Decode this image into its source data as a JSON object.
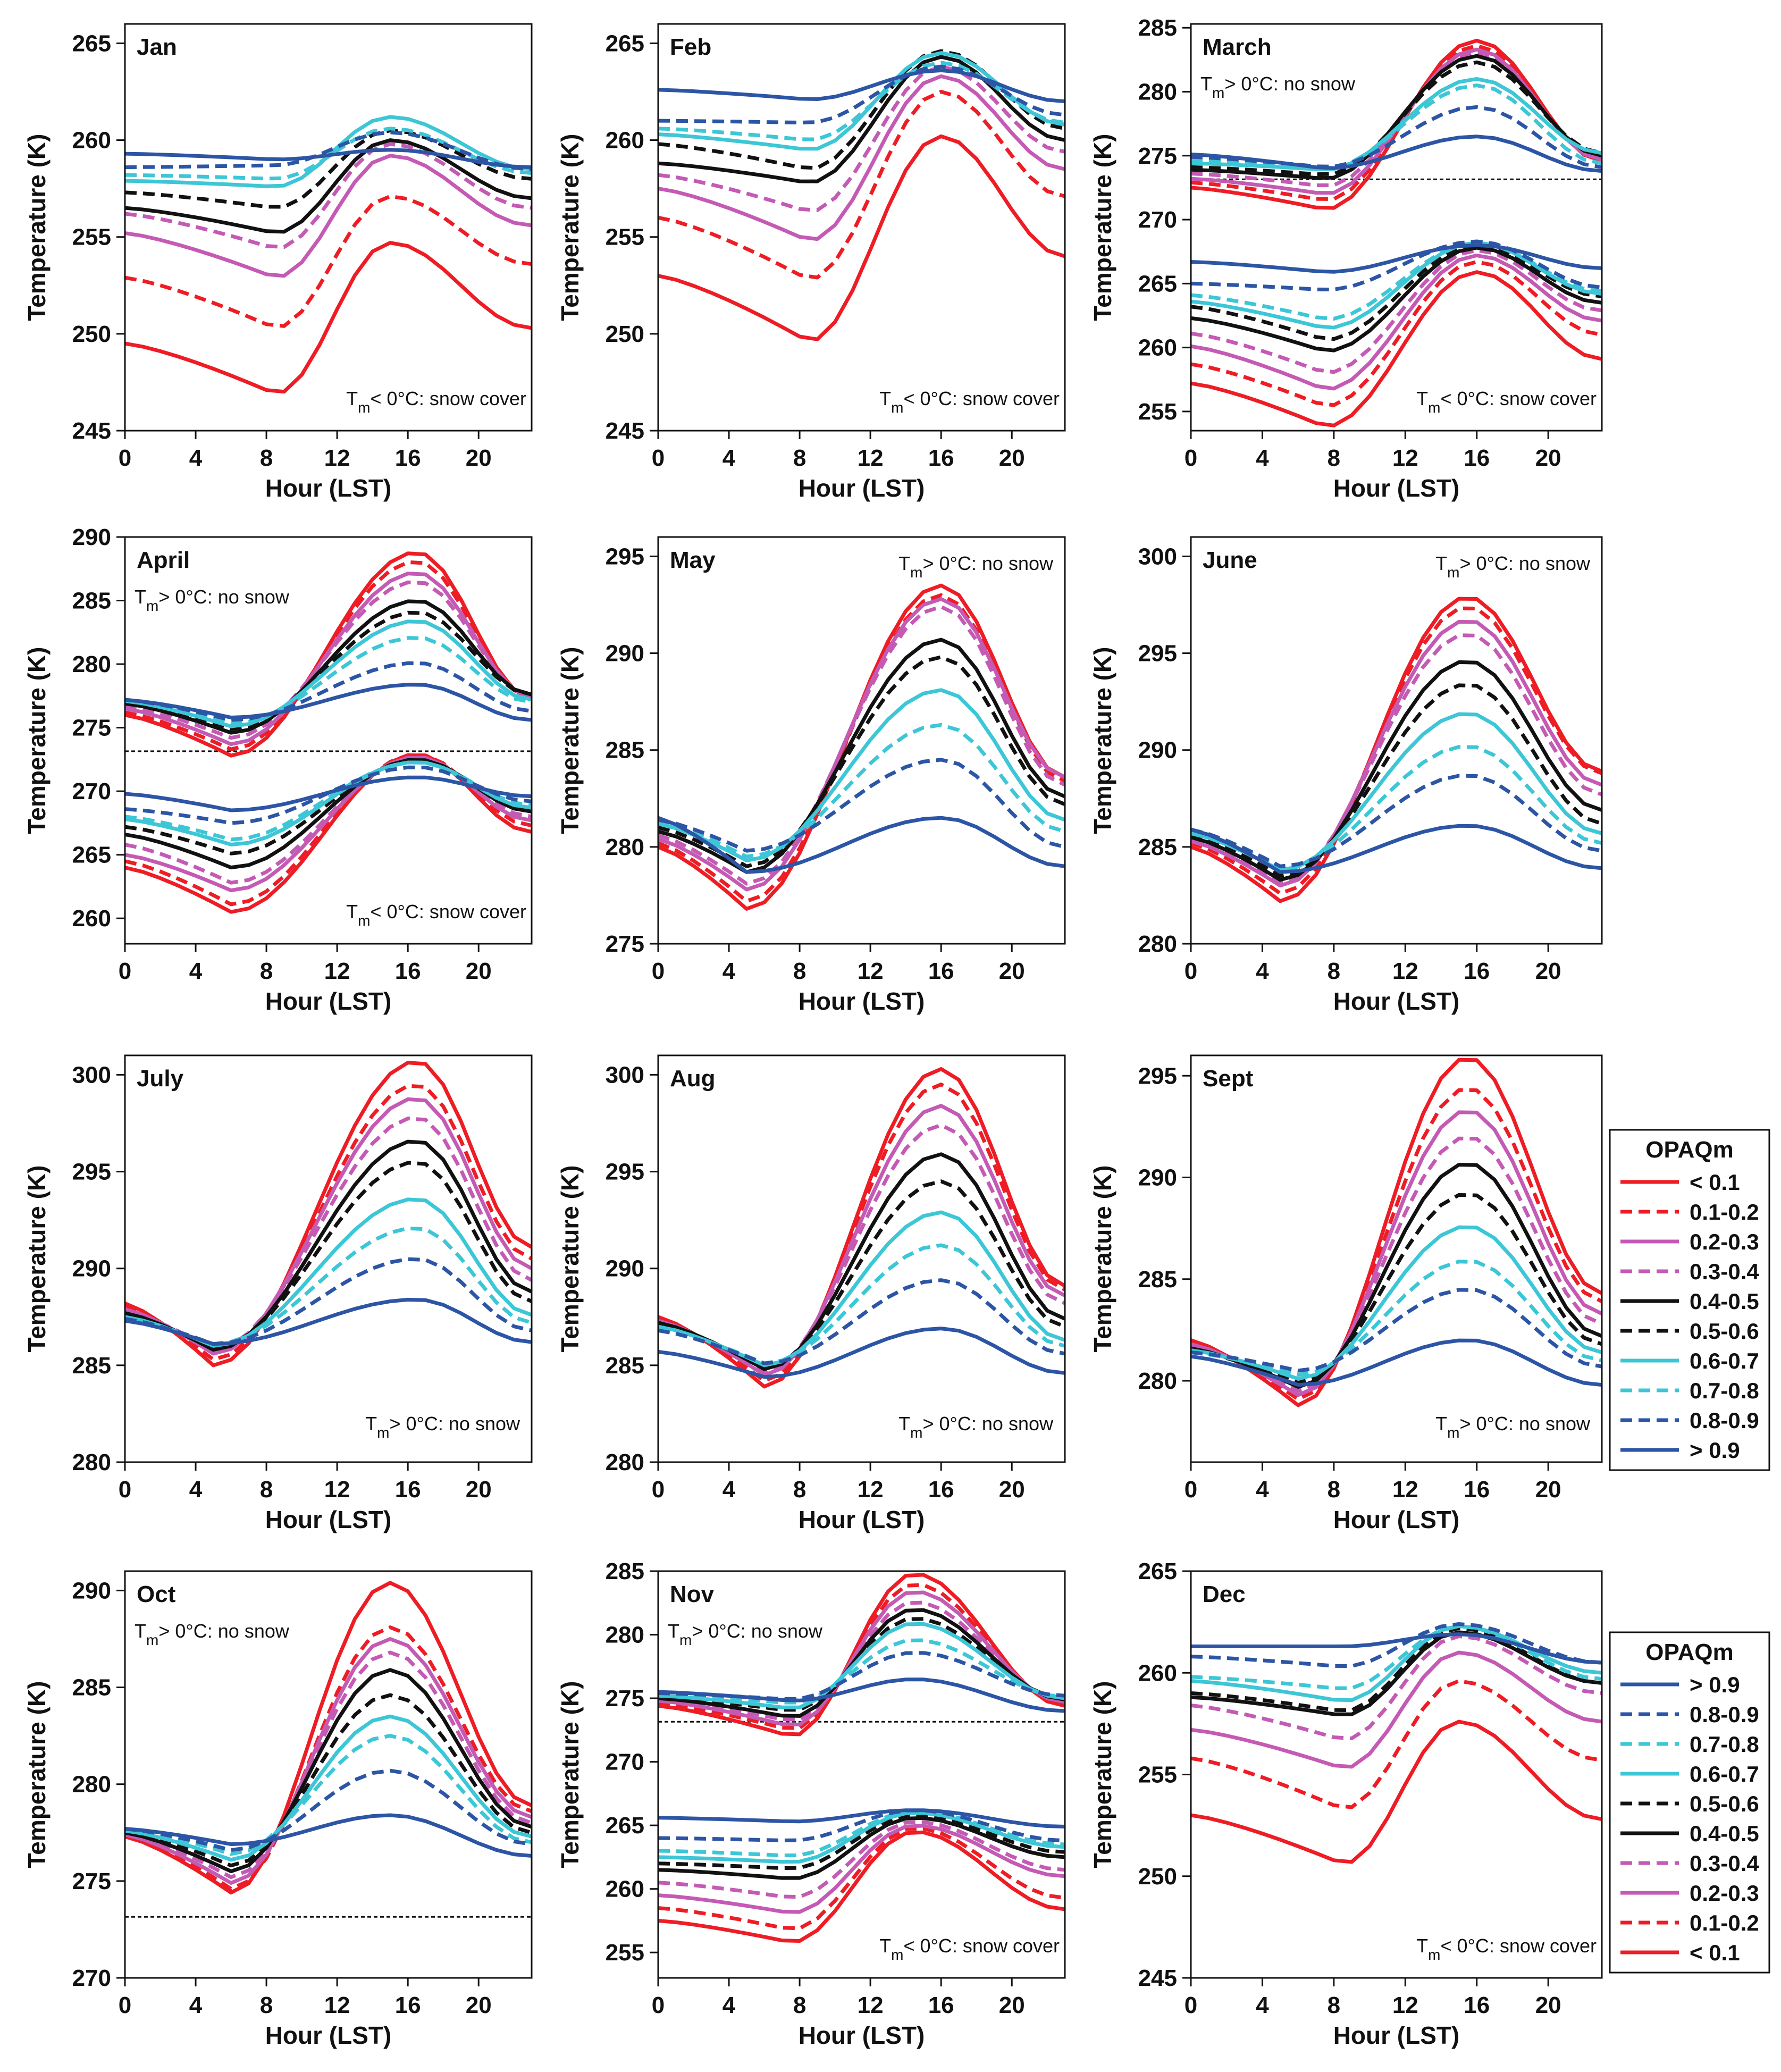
{
  "chart_data": {
    "type": "line",
    "panels": [
      {
        "title": "Jan",
        "ylim": [
          245,
          266
        ],
        "yticks": [
          245,
          250,
          255,
          260,
          265
        ],
        "snow": {
          "temp": "252",
          "lab": "T_m< 0°C: snow cover"
        }
      },
      {
        "title": "Feb",
        "ylim": [
          245,
          266
        ],
        "yticks": [
          245,
          250,
          255,
          260,
          265
        ],
        "snow": {
          "temp": "255",
          "lab": "T_m< 0°C: snow cover"
        }
      },
      {
        "title": "March",
        "ylim": [
          253.5,
          285.3
        ],
        "yticks": [
          255,
          260,
          265,
          270,
          275,
          280,
          285
        ],
        "nosnow": {
          "temp": "277",
          "lab": "T_m> 0°C: no snow"
        },
        "snow": {
          "temp": "261",
          "lab": "T_m< 0°C: snow cover"
        },
        "freeze": 273.15
      },
      {
        "title": "April",
        "ylim": [
          258,
          290
        ],
        "yticks": [
          260,
          265,
          270,
          275,
          280,
          285,
          290
        ],
        "nosnow": {
          "temp": "279",
          "lab": "T_m> 0°C: no snow"
        },
        "snow": {
          "temp": "266",
          "lab": "T_m< 0°C: snow cover"
        },
        "freeze": 273.15
      },
      {
        "title": "May",
        "ylim": [
          275,
          296
        ],
        "yticks": [
          275,
          280,
          285,
          290,
          295
        ],
        "nosnow": {
          "temp": "285",
          "lab": "T_m> 0°C: no snow"
        }
      },
      {
        "title": "June",
        "ylim": [
          280,
          301
        ],
        "yticks": [
          280,
          285,
          290,
          295,
          300
        ],
        "nosnow": {
          "temp": "289",
          "lab": "T_m> 0°C: no snow"
        }
      },
      {
        "title": "July",
        "ylim": [
          280,
          301
        ],
        "yticks": [
          280,
          285,
          290,
          295,
          300
        ],
        "nosnow": {
          "temp": "291",
          "lab": "T_m> 0°C: no snow"
        }
      },
      {
        "title": "Aug",
        "ylim": [
          280,
          301
        ],
        "yticks": [
          280,
          285,
          290,
          295,
          300
        ],
        "nosnow": {
          "temp": "290",
          "lab": "T_m> 0°C: no snow"
        }
      },
      {
        "title": "Sept",
        "ylim": [
          276,
          296
        ],
        "yticks": [
          280,
          285,
          290,
          295
        ],
        "nosnow": {
          "temp": "286",
          "lab": "T_m> 0°C: no snow"
        }
      },
      {
        "title": "Oct",
        "ylim": [
          270,
          291
        ],
        "yticks": [
          270,
          275,
          280,
          285,
          290
        ],
        "nosnow": {
          "temp": "281",
          "lab": "T_m> 0°C: no snow"
        },
        "freeze": 273.15
      },
      {
        "title": "Nov",
        "ylim": [
          253,
          285
        ],
        "yticks": [
          255,
          260,
          265,
          270,
          275,
          280,
          285
        ],
        "nosnow": {
          "temp": "276",
          "lab": "T_m> 0°C: no snow"
        },
        "snow": {
          "temp": "260",
          "lab": "T_m< 0°C: snow cover"
        },
        "freeze": 273.15
      },
      {
        "title": "Dec",
        "ylim": [
          245,
          265
        ],
        "yticks": [
          245,
          250,
          255,
          260,
          265
        ],
        "snow": {
          "temp": "253",
          "lab": "T_m< 0°C: snow cover"
        }
      }
    ],
    "xlabel": "Hour (LST)",
    "ylabel": "Temperature (K)",
    "xticks": [
      0,
      4,
      8,
      12,
      16,
      20
    ],
    "xlim": [
      0,
      23
    ],
    "x_hours": [
      0,
      1,
      2,
      3,
      4,
      5,
      6,
      7,
      8,
      9,
      10,
      11,
      12,
      13,
      14,
      15,
      16,
      17,
      18,
      19,
      20,
      21,
      22,
      23
    ],
    "legend_title": "OPAQm",
    "legend_items": [
      "< 0.1",
      "0.1-0.2",
      "0.2-0.3",
      "0.3-0.4",
      "0.4-0.5",
      "0.5-0.6",
      "0.6-0.7",
      "0.7-0.8",
      "0.8-0.9",
      "> 0.9"
    ],
    "legend_items_reversed": [
      "> 0.9",
      "0.8-0.9",
      "0.7-0.8",
      "0.6-0.7",
      "0.5-0.6",
      "0.4-0.5",
      "0.3-0.4",
      "0.2-0.3",
      "0.1-0.2",
      "< 0.1"
    ],
    "series_styles": [
      {
        "color": "#ee1c24",
        "dash": false
      },
      {
        "color": "#ee1c24",
        "dash": true
      },
      {
        "color": "#c45ab4",
        "dash": false
      },
      {
        "color": "#c45ab4",
        "dash": true
      },
      {
        "color": "#111111",
        "dash": false
      },
      {
        "color": "#111111",
        "dash": true
      },
      {
        "color": "#3cc6d6",
        "dash": false
      },
      {
        "color": "#3cc6d6",
        "dash": true
      },
      {
        "color": "#2d55a5",
        "dash": true
      },
      {
        "color": "#2d55a5",
        "dash": false
      }
    ],
    "curve_groups": {
      "Jan": [
        {
          "peak": 15,
          "base": [
            249.5,
            252.9,
            255.2,
            256.2,
            256.5,
            257.3,
            257.9,
            258.2,
            258.6,
            259.3
          ],
          "min": [
            246.9,
            250.3,
            252.9,
            254.4,
            255.2,
            256.5,
            257.6,
            258.0,
            258.7,
            259.0
          ],
          "max": [
            254.7,
            257.1,
            259.2,
            259.8,
            260.0,
            260.5,
            261.2,
            260.6,
            260.4,
            259.5
          ],
          "end": [
            250.3,
            253.6,
            255.6,
            256.5,
            257.0,
            258.0,
            258.5,
            258.3,
            258.5,
            258.6
          ]
        }
      ],
      "Feb": [
        {
          "peak": 16,
          "base": [
            253.0,
            256.0,
            257.5,
            258.2,
            258.8,
            259.8,
            260.3,
            260.6,
            261.0,
            262.6
          ],
          "min": [
            249.6,
            252.8,
            254.8,
            256.3,
            257.8,
            258.5,
            259.5,
            260.0,
            260.9,
            262.1
          ],
          "max": [
            260.2,
            262.5,
            263.3,
            263.8,
            264.3,
            264.6,
            264.5,
            264.0,
            263.8,
            263.6
          ],
          "end": [
            254.0,
            257.1,
            258.5,
            259.4,
            260.0,
            260.6,
            260.8,
            260.9,
            261.3,
            262.0
          ]
        }
      ],
      "March": [
        {
          "peak": 16,
          "base": [
            272.5,
            272.9,
            273.2,
            273.6,
            273.9,
            274.1,
            274.4,
            274.6,
            274.9,
            275.1
          ],
          "min": [
            270.8,
            271.5,
            272.0,
            272.6,
            273.2,
            273.5,
            273.9,
            274.0,
            274.1,
            274.0
          ],
          "max": [
            284.0,
            283.6,
            283.3,
            283.0,
            282.8,
            282.3,
            281.0,
            280.5,
            278.8,
            276.5
          ],
          "end": [
            274.6,
            274.7,
            274.7,
            274.9,
            275.0,
            275.2,
            275.2,
            274.4,
            274.1,
            273.8
          ]
        },
        {
          "peak": 16,
          "base": [
            257.2,
            258.7,
            260.1,
            261.1,
            262.3,
            263.2,
            263.6,
            264.1,
            265.0,
            266.7
          ],
          "min": [
            253.8,
            255.4,
            256.7,
            258.0,
            259.7,
            260.6,
            261.5,
            262.2,
            264.5,
            265.9
          ],
          "max": [
            265.9,
            266.7,
            267.2,
            267.6,
            267.8,
            268.0,
            268.2,
            268.2,
            268.3,
            268.0
          ],
          "end": [
            259.1,
            261.0,
            262.1,
            262.9,
            263.5,
            264.0,
            264.2,
            264.4,
            264.7,
            266.2
          ]
        }
      ],
      "April": [
        {
          "peak": 16.5,
          "base": [
            276.0,
            276.2,
            276.5,
            276.7,
            276.9,
            277.0,
            277.1,
            277.2,
            277.2,
            277.2
          ],
          "min": [
            272.8,
            273.3,
            273.7,
            274.2,
            274.6,
            274.9,
            275.1,
            275.3,
            275.6,
            275.8
          ],
          "max": [
            288.8,
            288.1,
            287.2,
            286.5,
            285.0,
            284.1,
            283.4,
            282.1,
            280.1,
            278.4
          ],
          "end": [
            277.3,
            277.4,
            277.4,
            277.5,
            277.6,
            277.6,
            277.2,
            277.0,
            276.3,
            275.6
          ]
        },
        {
          "peak": 16.5,
          "base": [
            264.0,
            264.5,
            265.0,
            265.8,
            266.6,
            267.2,
            267.8,
            268.0,
            268.6,
            269.8
          ],
          "min": [
            260.5,
            261.1,
            262.2,
            262.8,
            264.0,
            265.1,
            265.8,
            266.2,
            267.5,
            268.5
          ],
          "max": [
            272.9,
            272.9,
            272.7,
            272.6,
            272.5,
            272.4,
            272.3,
            272.3,
            271.9,
            271.1
          ],
          "end": [
            266.8,
            267.3,
            267.7,
            268.0,
            268.4,
            268.6,
            268.7,
            268.9,
            269.2,
            269.6
          ]
        }
      ],
      "May": [
        {
          "peak": 16,
          "base": [
            280.0,
            280.2,
            280.4,
            280.6,
            280.8,
            281.0,
            281.2,
            281.3,
            281.4,
            281.5
          ],
          "min": [
            276.8,
            277.2,
            277.8,
            278.1,
            278.7,
            279.0,
            279.3,
            279.5,
            279.8,
            278.7
          ],
          "max": [
            293.5,
            293.0,
            292.8,
            292.4,
            290.7,
            289.8,
            288.1,
            286.3,
            284.5,
            281.5
          ],
          "end": [
            283.6,
            283.4,
            283.6,
            283.2,
            282.6,
            282.2,
            281.4,
            280.8,
            280.0,
            279.0
          ]
        }
      ],
      "June": [
        {
          "peak": 15.5,
          "base": [
            285.0,
            285.2,
            285.3,
            285.4,
            285.5,
            285.6,
            285.7,
            285.8,
            285.9,
            285.9
          ],
          "min": [
            282.2,
            282.6,
            283.0,
            283.2,
            283.3,
            283.5,
            283.8,
            283.9,
            284.0,
            283.7
          ],
          "max": [
            297.9,
            297.4,
            296.7,
            296.0,
            294.6,
            293.4,
            291.9,
            290.2,
            288.7,
            286.1
          ],
          "end": [
            288.9,
            288.8,
            288.2,
            287.7,
            286.9,
            286.2,
            285.7,
            285.2,
            284.8,
            283.9
          ]
        }
      ],
      "July": [
        {
          "peak": 16.5,
          "base": [
            288.2,
            288.0,
            287.9,
            287.8,
            287.7,
            287.6,
            287.5,
            287.4,
            287.4,
            287.3
          ],
          "min": [
            285.0,
            285.3,
            285.6,
            285.8,
            285.8,
            285.9,
            286.0,
            286.1,
            286.1,
            286.1
          ],
          "max": [
            300.7,
            299.5,
            298.8,
            297.8,
            296.6,
            295.5,
            293.6,
            292.1,
            290.5,
            288.4
          ],
          "end": [
            291.1,
            290.5,
            290.0,
            289.4,
            288.8,
            288.3,
            287.6,
            287.2,
            286.8,
            286.2
          ]
        }
      ],
      "Aug": [
        {
          "peak": 16,
          "base": [
            287.5,
            287.4,
            287.3,
            287.2,
            287.2,
            287.1,
            287.0,
            286.9,
            286.8,
            285.7
          ],
          "min": [
            283.9,
            284.2,
            284.5,
            284.7,
            284.8,
            284.9,
            285.0,
            285.1,
            285.1,
            284.4
          ],
          "max": [
            300.3,
            299.5,
            298.4,
            297.4,
            295.9,
            294.5,
            292.9,
            291.2,
            289.4,
            286.9
          ],
          "end": [
            289.1,
            288.9,
            288.6,
            288.2,
            287.4,
            287.0,
            286.3,
            286.0,
            285.6,
            284.6
          ]
        }
      ],
      "Sept": [
        {
          "peak": 15.5,
          "base": [
            282.0,
            281.9,
            281.8,
            281.7,
            281.6,
            281.5,
            281.5,
            281.4,
            281.4,
            281.2
          ],
          "min": [
            278.8,
            279.1,
            279.3,
            279.5,
            279.7,
            279.9,
            280.1,
            280.3,
            280.5,
            279.8
          ],
          "max": [
            295.9,
            294.4,
            293.3,
            292.0,
            290.7,
            289.2,
            287.6,
            285.9,
            284.5,
            282.0
          ],
          "end": [
            284.3,
            283.9,
            283.3,
            282.8,
            282.2,
            281.8,
            281.4,
            281.0,
            280.7,
            279.8
          ]
        }
      ],
      "Oct": [
        {
          "peak": 15,
          "base": [
            277.3,
            277.4,
            277.4,
            277.5,
            277.5,
            277.6,
            277.6,
            277.7,
            277.7,
            277.7
          ],
          "min": [
            274.4,
            274.6,
            274.9,
            275.2,
            275.5,
            275.8,
            276.1,
            276.4,
            276.6,
            276.9
          ],
          "max": [
            290.4,
            288.1,
            287.5,
            286.8,
            285.9,
            284.6,
            283.5,
            282.5,
            280.7,
            278.4
          ],
          "end": [
            278.9,
            278.6,
            278.3,
            278.0,
            277.8,
            277.5,
            277.3,
            277.0,
            276.9,
            276.3
          ]
        }
      ],
      "Nov": [
        {
          "peak": 14.5,
          "base": [
            274.4,
            274.6,
            274.8,
            274.9,
            275.0,
            275.1,
            275.2,
            275.3,
            275.4,
            275.5
          ],
          "min": [
            272.0,
            272.5,
            272.8,
            273.2,
            273.5,
            274.0,
            274.2,
            274.6,
            274.9,
            274.8
          ],
          "max": [
            284.8,
            284.0,
            283.4,
            282.6,
            282.0,
            281.3,
            280.9,
            279.6,
            278.6,
            276.5
          ],
          "end": [
            274.4,
            274.6,
            274.7,
            274.8,
            274.9,
            275.0,
            275.0,
            275.1,
            275.2,
            274.0
          ]
        },
        {
          "peak": 14.5,
          "base": [
            257.5,
            258.5,
            259.5,
            260.5,
            261.5,
            262.0,
            262.5,
            263.0,
            264.0,
            265.6
          ],
          "min": [
            255.8,
            256.8,
            258.1,
            259.3,
            260.8,
            261.6,
            262.1,
            262.6,
            263.8,
            265.3
          ],
          "max": [
            264.5,
            264.8,
            265.0,
            265.3,
            265.6,
            265.8,
            266.0,
            266.1,
            266.2,
            266.2
          ],
          "end": [
            258.4,
            259.3,
            261.0,
            261.5,
            262.5,
            262.9,
            263.3,
            263.5,
            263.8,
            264.9
          ]
        }
      ],
      "Dec": [
        {
          "peak": 15,
          "base": [
            253.0,
            255.8,
            257.2,
            258.4,
            258.8,
            259.0,
            259.6,
            259.8,
            260.8,
            261.3
          ],
          "min": [
            250.6,
            253.3,
            255.3,
            256.7,
            257.9,
            258.1,
            258.6,
            259.2,
            260.3,
            261.3
          ],
          "max": [
            257.6,
            259.6,
            261.0,
            261.8,
            262.0,
            262.2,
            262.3,
            262.3,
            262.4,
            261.9
          ],
          "end": [
            252.8,
            255.7,
            257.6,
            259.0,
            259.5,
            259.5,
            260.0,
            259.7,
            260.5,
            260.5
          ]
        }
      ]
    }
  }
}
